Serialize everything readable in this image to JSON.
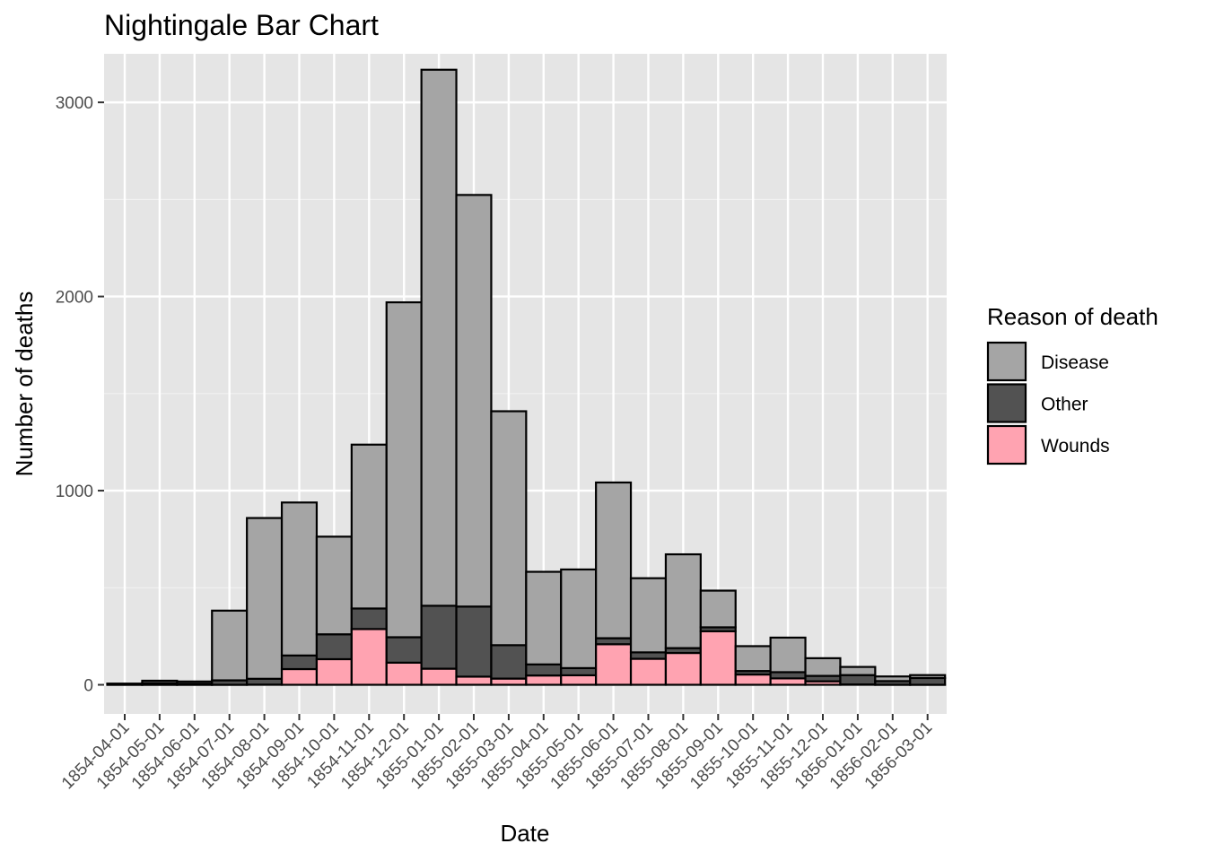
{
  "chart_data": {
    "type": "bar",
    "stacked": true,
    "title": "Nightingale Bar Chart",
    "xlabel": "Date",
    "ylabel": "Number of deaths",
    "ylim": [
      -150,
      3250
    ],
    "yticks": [
      0,
      1000,
      2000,
      3000
    ],
    "yticks_labels": [
      "0",
      "1000",
      "2000",
      "3000"
    ],
    "grid": true,
    "legend": {
      "title": "Reason of death",
      "position": "right",
      "entries": [
        {
          "name": "Disease",
          "color": "#a5a5a5"
        },
        {
          "name": "Other",
          "color": "#525252"
        },
        {
          "name": "Wounds",
          "color": "#ffa3b1"
        }
      ]
    },
    "categories": [
      "1854-04-01",
      "1854-05-01",
      "1854-06-01",
      "1854-07-01",
      "1854-08-01",
      "1854-09-01",
      "1854-10-01",
      "1854-11-01",
      "1854-12-01",
      "1855-01-01",
      "1855-02-01",
      "1855-03-01",
      "1855-04-01",
      "1855-05-01",
      "1855-06-01",
      "1855-07-01",
      "1855-08-01",
      "1855-09-01",
      "1855-10-01",
      "1855-11-01",
      "1855-12-01",
      "1856-01-01",
      "1856-02-01",
      "1856-03-01"
    ],
    "series": [
      {
        "name": "Wounds",
        "color": "#ffa3b1",
        "values": [
          0,
          0,
          0,
          0,
          1,
          81,
          132,
          287,
          114,
          83,
          42,
          32,
          48,
          49,
          209,
          134,
          164,
          276,
          53,
          33,
          18,
          2,
          0,
          0
        ]
      },
      {
        "name": "Other",
        "color": "#525252",
        "values": [
          5,
          9,
          6,
          23,
          30,
          70,
          128,
          106,
          131,
          324,
          361,
          172,
          57,
          37,
          31,
          33,
          25,
          20,
          18,
          32,
          28,
          48,
          19,
          35
        ]
      },
      {
        "name": "Disease",
        "color": "#a5a5a5",
        "values": [
          1,
          12,
          11,
          359,
          828,
          788,
          503,
          844,
          1725,
          2761,
          2120,
          1205,
          477,
          508,
          802,
          382,
          483,
          189,
          128,
          178,
          91,
          42,
          24,
          15
        ]
      }
    ]
  }
}
